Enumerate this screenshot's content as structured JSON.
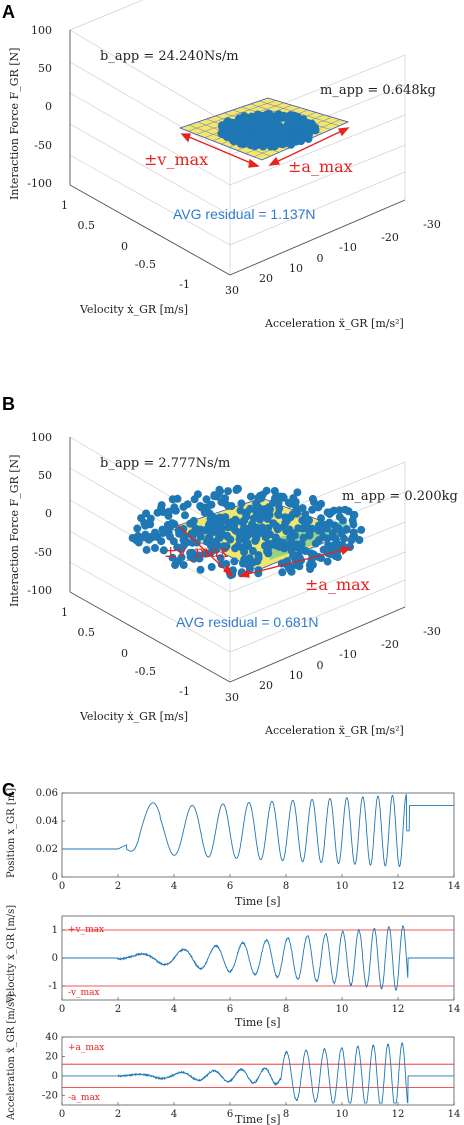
{
  "panels": {
    "a": "A",
    "b": "B",
    "c": "C"
  },
  "chart_data": [
    {
      "type": "scatter",
      "panel": "A",
      "zlabel": "Interaction Force F_GR [N]",
      "ylabel": "Velocity ẋ_GR [m/s]",
      "xlabel": "Acceleration ẍ_GR [m/s²]",
      "zticks": [
        "100",
        "50",
        "0",
        "-50",
        "-100"
      ],
      "yticks": [
        "1",
        "0.5",
        "0",
        "-0.5",
        "-1"
      ],
      "xticks": [
        "30",
        "20",
        "10",
        "0",
        "-10",
        "-20",
        "-30"
      ],
      "zlim": [
        -100,
        100
      ],
      "ylim": [
        -1,
        1
      ],
      "xlim": [
        -30,
        30
      ],
      "annotations": {
        "b_app": "b_app = 24.240Ns/m",
        "m_app": "m_app = 0.648kg",
        "v_max": "±v_max",
        "a_max": "±a_max",
        "residual": "AVG residual = 1.137N"
      }
    },
    {
      "type": "scatter",
      "panel": "B",
      "zlabel": "Interaction Force F_GR [N]",
      "ylabel": "Velocity ẋ_GR [m/s]",
      "xlabel": "Acceleration ẍ_GR [m/s²]",
      "zticks": [
        "100",
        "50",
        "0",
        "-50",
        "-100"
      ],
      "yticks": [
        "1",
        "0.5",
        "0",
        "-0.5",
        "-1"
      ],
      "xticks": [
        "30",
        "20",
        "10",
        "0",
        "-10",
        "-20",
        "-30"
      ],
      "zlim": [
        -100,
        100
      ],
      "ylim": [
        -1,
        1
      ],
      "xlim": [
        -30,
        30
      ],
      "annotations": {
        "b_app": "b_app = 2.777Ns/m",
        "m_app": "m_app = 0.200kg",
        "v_max": "±v_max",
        "a_max": "±a_max",
        "residual": "AVG residual = 0.681N"
      }
    },
    {
      "type": "line",
      "panel": "C1",
      "xlabel": "Time [s]",
      "ylabel": "Position x_GR [m]",
      "xlim": [
        0,
        14
      ],
      "ylim": [
        0,
        0.06
      ],
      "xticks": [
        "0",
        "2",
        "4",
        "6",
        "8",
        "10",
        "12",
        "14"
      ],
      "yticks": [
        "0.06",
        "0.04",
        "0.02",
        "0"
      ]
    },
    {
      "type": "line",
      "panel": "C2",
      "xlabel": "Time [s]",
      "ylabel": "Velocity ẋ_GR [m/s]",
      "xlim": [
        0,
        14
      ],
      "ylim": [
        -1.5,
        1.5
      ],
      "xticks": [
        "0",
        "2",
        "4",
        "6",
        "8",
        "10",
        "12",
        "14"
      ],
      "yticks": [
        "1",
        "0",
        "-1"
      ],
      "limits": {
        "upper_label": "+v_max",
        "lower_label": "-v_max",
        "upper": 1.0,
        "lower": -1.0
      }
    },
    {
      "type": "line",
      "panel": "C3",
      "xlabel": "Time [s]",
      "ylabel": "Acceleration ẍ_GR [m/s²]",
      "xlim": [
        0,
        14
      ],
      "ylim": [
        -30,
        40
      ],
      "xticks": [
        "0",
        "2",
        "4",
        "6",
        "8",
        "10",
        "12",
        "14"
      ],
      "yticks": [
        "40",
        "20",
        "0",
        "-20"
      ],
      "limits": {
        "upper_label": "+a_max",
        "lower_label": "-a_max",
        "upper": 12,
        "lower": -12
      }
    }
  ],
  "colors": {
    "series": "#1f77b4",
    "annotation": "#e8221f",
    "residual": "#2f7bd0"
  }
}
